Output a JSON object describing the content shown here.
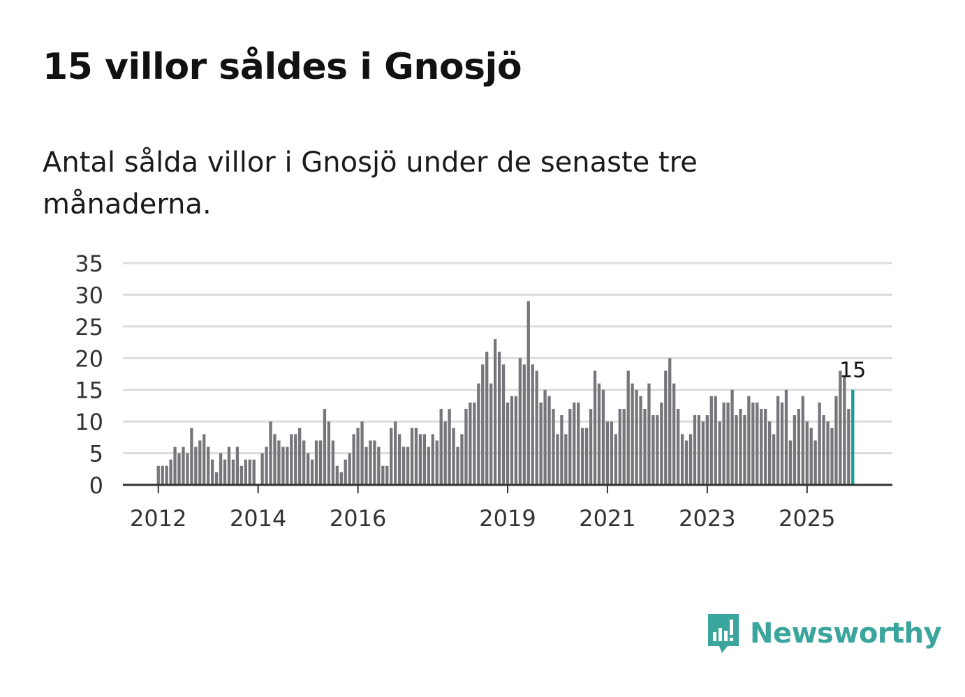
{
  "title": "15 villor såldes i Gnosjö",
  "subtitle": "Antal sålda villor i Gnosjö under de senaste tre månaderna.",
  "brand": {
    "name": "Newsworthy",
    "icon": "newsworthy-logo-icon",
    "color": "#3aa59d"
  },
  "colors": {
    "bar": "#76757a",
    "highlight": "#179c95",
    "grid": "#dcdcdc",
    "axis": "#333333"
  },
  "chart_data": {
    "type": "bar",
    "title": "15 villor såldes i Gnosjö",
    "xlabel": "",
    "ylabel": "",
    "ylim": [
      0,
      35
    ],
    "yticks": [
      0,
      5,
      10,
      15,
      20,
      25,
      30,
      35
    ],
    "xlim": [
      2011.29,
      2026.71
    ],
    "xticks": [
      {
        "label": "2012",
        "x": 2012.0
      },
      {
        "label": "2014",
        "x": 2014.0
      },
      {
        "label": "2016",
        "x": 2016.0
      },
      {
        "label": "2019",
        "x": 2019.0
      },
      {
        "label": "2021",
        "x": 2021.0
      },
      {
        "label": "2023",
        "x": 2023.0
      },
      {
        "label": "2025",
        "x": 2025.0
      }
    ],
    "x_start": 2012.0,
    "x_step": 0.08333,
    "grid": true,
    "values": [
      3,
      3,
      3,
      4,
      6,
      5,
      6,
      5,
      9,
      6,
      7,
      8,
      6,
      4,
      2,
      5,
      4,
      6,
      4,
      6,
      3,
      4,
      4,
      4,
      0,
      5,
      6,
      10,
      8,
      7,
      6,
      6,
      8,
      8,
      9,
      7,
      5,
      4,
      7,
      7,
      12,
      10,
      7,
      3,
      2,
      4,
      5,
      8,
      9,
      10,
      6,
      7,
      7,
      6,
      3,
      3,
      9,
      10,
      8,
      6,
      6,
      9,
      9,
      8,
      8,
      6,
      8,
      7,
      12,
      10,
      12,
      9,
      6,
      8,
      12,
      13,
      13,
      16,
      19,
      21,
      16,
      23,
      21,
      19,
      13,
      14,
      14,
      20,
      19,
      29,
      19,
      18,
      13,
      15,
      14,
      12,
      8,
      11,
      8,
      12,
      13,
      13,
      9,
      9,
      12,
      18,
      16,
      15,
      10,
      10,
      8,
      12,
      12,
      18,
      16,
      15,
      14,
      12,
      16,
      11,
      11,
      13,
      18,
      20,
      16,
      12,
      8,
      7,
      8,
      11,
      11,
      10,
      11,
      14,
      14,
      10,
      13,
      13,
      15,
      11,
      12,
      11,
      14,
      13,
      13,
      12,
      12,
      10,
      8,
      14,
      13,
      15,
      7,
      11,
      12,
      14,
      10,
      9,
      7,
      13,
      11,
      10,
      9,
      14,
      18,
      17,
      12,
      15
    ],
    "highlight_index": 167,
    "annotations": [
      {
        "label": "15",
        "index": 167,
        "value": 15
      }
    ]
  }
}
